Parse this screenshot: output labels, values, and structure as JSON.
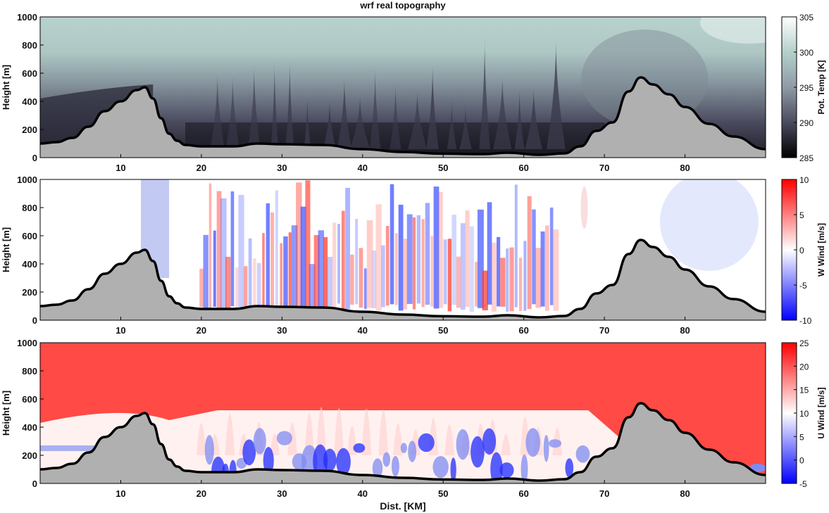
{
  "title": "wrf real topography",
  "xlabel": "Dist. [KM]",
  "chart_data": [
    {
      "type": "heatmap",
      "panel": "pot-temp",
      "xlim": [
        0,
        90
      ],
      "ylim": [
        0,
        1000
      ],
      "xticks": [
        10,
        20,
        30,
        40,
        50,
        60,
        70,
        80
      ],
      "yticks": [
        0,
        200,
        400,
        600,
        800,
        1000
      ],
      "ylabel": "Height [m]",
      "colorbar": {
        "label": "Pot. Temp [K]",
        "min": 285,
        "max": 305,
        "ticks": [
          285,
          290,
          295,
          300,
          305
        ],
        "colors": [
          "#000000",
          "#4a4a5e",
          "#8f9aa6",
          "#b4d0cc",
          "#ffffff"
        ]
      }
    },
    {
      "type": "heatmap",
      "panel": "w-wind",
      "xlim": [
        0,
        90
      ],
      "ylim": [
        0,
        1000
      ],
      "xticks": [
        10,
        20,
        30,
        40,
        50,
        60,
        70,
        80
      ],
      "yticks": [
        0,
        200,
        400,
        600,
        800,
        1000
      ],
      "ylabel": "Height [m]",
      "colorbar": {
        "label": "W Wind [m/s]",
        "min": -10,
        "max": 10,
        "ticks": [
          -10,
          -5,
          0,
          5,
          10
        ],
        "colors": [
          "#0000ff",
          "#ffffff",
          "#ff0000"
        ]
      }
    },
    {
      "type": "heatmap",
      "panel": "u-wind",
      "xlim": [
        0,
        90
      ],
      "ylim": [
        0,
        1000
      ],
      "xticks": [
        10,
        20,
        30,
        40,
        50,
        60,
        70,
        80
      ],
      "yticks": [
        0,
        200,
        400,
        600,
        800,
        1000
      ],
      "ylabel": "Height [m]",
      "colorbar": {
        "label": "U Wind [m/s]",
        "min": -5,
        "max": 25,
        "ticks": [
          -5,
          0,
          5,
          10,
          15,
          20,
          25
        ],
        "colors": [
          "#0000ff",
          "#ffffff",
          "#ff0000"
        ]
      }
    }
  ],
  "terrain": {
    "color": "#b0b0b0",
    "x": [
      0,
      2,
      4,
      6,
      8,
      10,
      12,
      13,
      14,
      15,
      16,
      17,
      18,
      20,
      24,
      27,
      30,
      35,
      40,
      45,
      50,
      55,
      58,
      62,
      65,
      67,
      69,
      71,
      73,
      74.5,
      76,
      78,
      80,
      83,
      86,
      90
    ],
    "y": [
      100,
      110,
      140,
      220,
      330,
      400,
      480,
      500,
      420,
      280,
      170,
      120,
      90,
      80,
      80,
      100,
      95,
      90,
      60,
      40,
      28,
      25,
      35,
      20,
      30,
      80,
      190,
      250,
      470,
      570,
      520,
      450,
      360,
      240,
      150,
      60
    ]
  }
}
